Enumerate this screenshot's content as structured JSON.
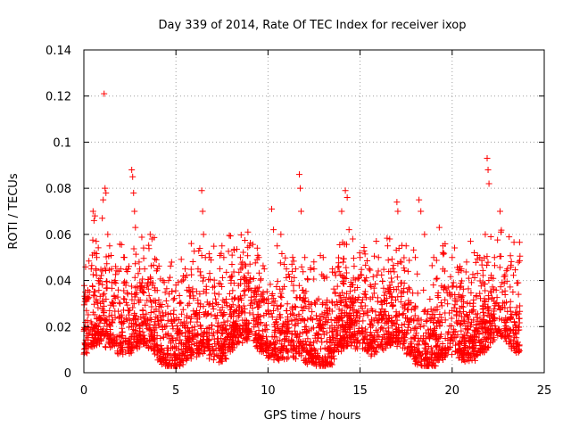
{
  "chart_data": {
    "type": "scatter",
    "title": "Day 339 of 2014, Rate Of TEC Index for receiver ixop",
    "xlabel": "GPS time / hours",
    "ylabel": "ROTI / TECUs",
    "xlim": [
      0,
      25
    ],
    "ylim": [
      0,
      0.14
    ],
    "xticks": [
      0,
      5,
      10,
      15,
      20,
      25
    ],
    "xtick_labels": [
      "0",
      "5",
      "10",
      "15",
      "20",
      "25"
    ],
    "yticks": [
      0,
      0.02,
      0.04,
      0.06,
      0.08,
      0.1,
      0.12,
      0.14
    ],
    "ytick_labels": [
      "0",
      "0.02",
      "0.04",
      "0.06",
      "0.08",
      "0.1",
      "0.12",
      "0.14"
    ],
    "grid": true,
    "marker": "plus",
    "color": "#ff0000",
    "series": [
      {
        "name": "ROTI",
        "points": [
          [
            0.1,
            0.012
          ],
          [
            0.2,
            0.02
          ],
          [
            0.3,
            0.035
          ],
          [
            0.4,
            0.045
          ],
          [
            0.5,
            0.07
          ],
          [
            0.55,
            0.066
          ],
          [
            0.6,
            0.068
          ],
          [
            0.7,
            0.05
          ],
          [
            0.8,
            0.04
          ],
          [
            0.9,
            0.03
          ],
          [
            1.0,
            0.067
          ],
          [
            1.05,
            0.075
          ],
          [
            1.1,
            0.121
          ],
          [
            1.15,
            0.08
          ],
          [
            1.2,
            0.078
          ],
          [
            1.3,
            0.06
          ],
          [
            1.4,
            0.055
          ],
          [
            1.5,
            0.045
          ],
          [
            1.7,
            0.04
          ],
          [
            1.9,
            0.044
          ],
          [
            2.0,
            0.045
          ],
          [
            2.2,
            0.05
          ],
          [
            2.4,
            0.045
          ],
          [
            2.6,
            0.088
          ],
          [
            2.65,
            0.085
          ],
          [
            2.7,
            0.078
          ],
          [
            2.75,
            0.07
          ],
          [
            2.8,
            0.063
          ],
          [
            3.0,
            0.048
          ],
          [
            3.3,
            0.045
          ],
          [
            3.6,
            0.06
          ],
          [
            3.7,
            0.058
          ],
          [
            4.0,
            0.045
          ],
          [
            4.3,
            0.04
          ],
          [
            4.6,
            0.04
          ],
          [
            5.0,
            0.038
          ],
          [
            5.2,
            0.03
          ],
          [
            5.5,
            0.045
          ],
          [
            5.8,
            0.035
          ],
          [
            6.2,
            0.045
          ],
          [
            6.4,
            0.079
          ],
          [
            6.45,
            0.07
          ],
          [
            6.5,
            0.06
          ],
          [
            6.6,
            0.05
          ],
          [
            7.0,
            0.03
          ],
          [
            7.5,
            0.055
          ],
          [
            7.6,
            0.05
          ],
          [
            8.0,
            0.04
          ],
          [
            8.5,
            0.05
          ],
          [
            9.0,
            0.055
          ],
          [
            9.5,
            0.05
          ],
          [
            9.8,
            0.045
          ],
          [
            10.2,
            0.071
          ],
          [
            10.3,
            0.062
          ],
          [
            10.5,
            0.055
          ],
          [
            10.7,
            0.06
          ],
          [
            11.0,
            0.045
          ],
          [
            11.5,
            0.045
          ],
          [
            11.7,
            0.086
          ],
          [
            11.75,
            0.08
          ],
          [
            11.8,
            0.07
          ],
          [
            12.0,
            0.05
          ],
          [
            12.5,
            0.045
          ],
          [
            13.0,
            0.05
          ],
          [
            13.5,
            0.045
          ],
          [
            14.0,
            0.07
          ],
          [
            14.2,
            0.079
          ],
          [
            14.3,
            0.076
          ],
          [
            14.4,
            0.062
          ],
          [
            14.6,
            0.058
          ],
          [
            15.0,
            0.05
          ],
          [
            15.5,
            0.045
          ],
          [
            16.0,
            0.05
          ],
          [
            16.5,
            0.055
          ],
          [
            17.0,
            0.074
          ],
          [
            17.05,
            0.07
          ],
          [
            17.5,
            0.055
          ],
          [
            18.0,
            0.05
          ],
          [
            18.2,
            0.075
          ],
          [
            18.3,
            0.07
          ],
          [
            18.5,
            0.06
          ],
          [
            19.0,
            0.05
          ],
          [
            19.3,
            0.063
          ],
          [
            19.5,
            0.055
          ],
          [
            20.0,
            0.05
          ],
          [
            20.5,
            0.045
          ],
          [
            21.0,
            0.057
          ],
          [
            21.2,
            0.052
          ],
          [
            21.5,
            0.05
          ],
          [
            21.8,
            0.06
          ],
          [
            21.9,
            0.093
          ],
          [
            21.95,
            0.088
          ],
          [
            22.0,
            0.082
          ],
          [
            22.1,
            0.059
          ],
          [
            22.3,
            0.05
          ],
          [
            22.6,
            0.07
          ],
          [
            22.65,
            0.061
          ],
          [
            23.0,
            0.045
          ],
          [
            23.3,
            0.035
          ],
          [
            23.6,
            0.034
          ]
        ]
      }
    ],
    "coverage": "Dense band of ROTI samples spanning 0 to 23.7 h, mostly between 0.005 and 0.04 TECU/s"
  }
}
